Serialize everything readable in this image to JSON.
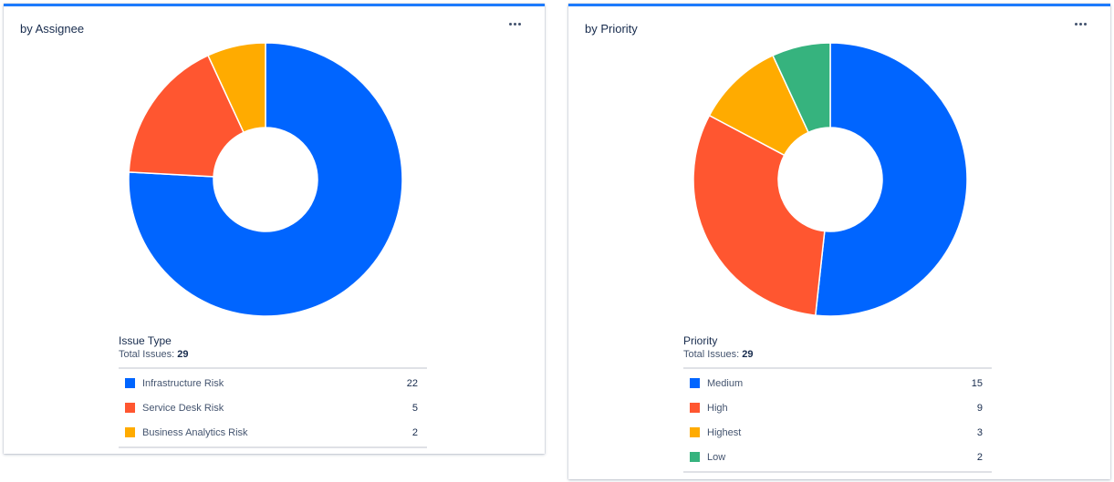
{
  "cards": [
    {
      "title": "by Assignee",
      "legend_title": "Issue Type",
      "total_label": "Total Issues:",
      "total": "29"
    },
    {
      "title": "by Priority",
      "legend_title": "Priority",
      "total_label": "Total Issues:",
      "total": "29"
    }
  ],
  "chart_data": [
    {
      "type": "pie",
      "title": "by Assignee",
      "legend_title": "Issue Type",
      "categories": [
        "Infrastructure Risk",
        "Service Desk Risk",
        "Business Analytics Risk"
      ],
      "values": [
        22,
        5,
        2
      ],
      "colors": [
        "#0065ff",
        "#ff5630",
        "#ffab00"
      ],
      "total": 29,
      "donut": true,
      "legend_position": "bottom"
    },
    {
      "type": "pie",
      "title": "by Priority",
      "legend_title": "Priority",
      "categories": [
        "Medium",
        "High",
        "Highest",
        "Low"
      ],
      "values": [
        15,
        9,
        3,
        2
      ],
      "colors": [
        "#0065ff",
        "#ff5630",
        "#ffab00",
        "#36b37e"
      ],
      "total": 29,
      "donut": true,
      "legend_position": "bottom"
    }
  ]
}
